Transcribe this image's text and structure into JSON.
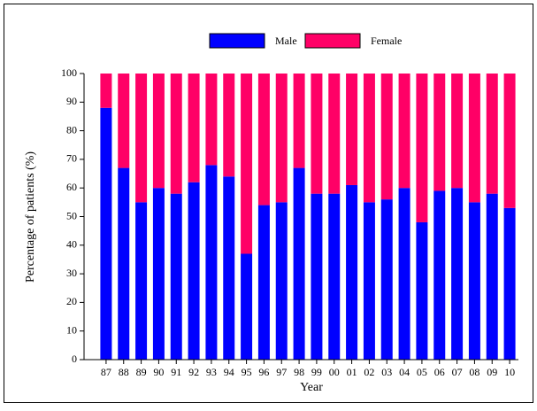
{
  "chart_data": {
    "type": "bar",
    "stacked": true,
    "x_label": "Year",
    "y_label": "Percentage of patients (%)",
    "categories": [
      "87",
      "88",
      "89",
      "90",
      "91",
      "92",
      "93",
      "94",
      "95",
      "96",
      "97",
      "98",
      "99",
      "00",
      "01",
      "02",
      "03",
      "04",
      "05",
      "06",
      "07",
      "08",
      "09",
      "10"
    ],
    "series": [
      {
        "name": "Male",
        "color": "#0000ff",
        "values": [
          88,
          67,
          55,
          60,
          58,
          62,
          68,
          64,
          37,
          54,
          55,
          67,
          58,
          58,
          61,
          55,
          56,
          60,
          48,
          59,
          60,
          55,
          58,
          53
        ]
      },
      {
        "name": "Female",
        "color": "#ff0066",
        "values": [
          12,
          33,
          45,
          40,
          42,
          38,
          32,
          36,
          63,
          46,
          45,
          33,
          42,
          42,
          39,
          45,
          44,
          40,
          52,
          41,
          40,
          45,
          42,
          47
        ]
      }
    ],
    "ylim": [
      0,
      100
    ],
    "yticks": [
      0,
      10,
      20,
      30,
      40,
      50,
      60,
      70,
      80,
      90,
      100
    ],
    "legend": "top"
  }
}
